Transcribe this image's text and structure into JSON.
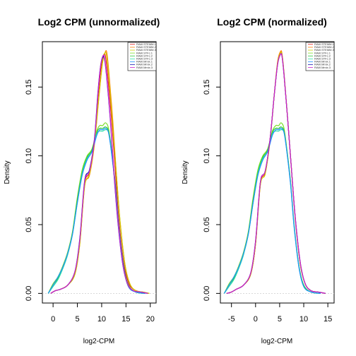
{
  "chart_data": [
    {
      "type": "line",
      "title": "Log2 CPM (unnormalized)",
      "xlabel": "log2-CPM",
      "ylabel": "Density",
      "xlim": [
        -2.2,
        21.2
      ],
      "ylim": [
        -0.007,
        0.183
      ],
      "xticks": [
        0,
        5,
        10,
        15,
        20
      ],
      "yticks": [
        0.0,
        0.05,
        0.1,
        0.15
      ],
      "yticklabels": [
        "0.00",
        "0.05",
        "0.10",
        "0.15"
      ],
      "legend_position": "top-right",
      "baseline": 0,
      "series": [
        {
          "name": "RAW.STEMM.1",
          "color": "#e41a1c",
          "x": [
            -0.5,
            0.5,
            1.5,
            3,
            4.5,
            5.5,
            6.5,
            7.5,
            8.5,
            9.3,
            10,
            10.5,
            10.8,
            11.2,
            12,
            12.8,
            13.5,
            14.5,
            15.5,
            16.5,
            18,
            19.5
          ],
          "y": [
            0.0,
            0.002,
            0.003,
            0.006,
            0.015,
            0.038,
            0.08,
            0.088,
            0.11,
            0.145,
            0.168,
            0.174,
            0.172,
            0.16,
            0.128,
            0.09,
            0.055,
            0.023,
            0.008,
            0.003,
            0.001,
            0.0
          ]
        },
        {
          "name": "RAW.STEMM.2",
          "color": "#ff7f00",
          "x": [
            -0.5,
            0.5,
            1.5,
            3,
            4.5,
            5.5,
            6.5,
            7.5,
            8.5,
            9.5,
            10.2,
            10.8,
            11.1,
            11.5,
            12.3,
            13,
            13.8,
            14.8,
            15.8,
            17,
            18.5,
            19.8
          ],
          "y": [
            0.0,
            0.002,
            0.003,
            0.006,
            0.014,
            0.036,
            0.078,
            0.086,
            0.108,
            0.145,
            0.168,
            0.176,
            0.174,
            0.16,
            0.125,
            0.088,
            0.052,
            0.021,
            0.007,
            0.002,
            0.001,
            0.0
          ]
        },
        {
          "name": "RAW.STEMM.3",
          "color": "#cdcd00",
          "x": [
            -0.5,
            0.5,
            1.5,
            3,
            4.5,
            5.5,
            6.5,
            7.5,
            8.5,
            9.5,
            10.2,
            10.7,
            11,
            11.4,
            12.2,
            13,
            13.8,
            14.8,
            15.8,
            17,
            18.5,
            19.8
          ],
          "y": [
            0.0,
            0.002,
            0.003,
            0.006,
            0.014,
            0.036,
            0.078,
            0.087,
            0.109,
            0.146,
            0.169,
            0.175,
            0.173,
            0.16,
            0.125,
            0.088,
            0.052,
            0.021,
            0.007,
            0.002,
            0.001,
            0.0
          ]
        },
        {
          "name": "RAW.STFc.1",
          "color": "#7cdf2a",
          "x": [
            -1,
            0,
            1,
            2,
            3,
            4,
            5,
            6,
            7,
            8,
            9,
            9.6,
            10.2,
            10.8,
            11.4,
            12,
            12.8,
            13.5,
            14.5,
            15.5,
            17,
            19
          ],
          "y": [
            0.0,
            0.007,
            0.012,
            0.02,
            0.03,
            0.045,
            0.07,
            0.09,
            0.1,
            0.105,
            0.118,
            0.122,
            0.122,
            0.124,
            0.12,
            0.105,
            0.08,
            0.05,
            0.02,
            0.006,
            0.001,
            0.0
          ]
        },
        {
          "name": "RAW.STFc.2",
          "color": "#2ac93a",
          "x": [
            -1,
            0,
            1,
            2,
            3,
            4,
            5,
            6,
            7,
            8,
            9,
            9.6,
            10.2,
            10.8,
            11.4,
            12,
            12.8,
            13.5,
            14.5,
            15.5,
            17,
            19
          ],
          "y": [
            0.0,
            0.006,
            0.011,
            0.019,
            0.029,
            0.044,
            0.068,
            0.088,
            0.099,
            0.104,
            0.117,
            0.12,
            0.12,
            0.121,
            0.118,
            0.104,
            0.079,
            0.049,
            0.02,
            0.006,
            0.001,
            0.0
          ]
        },
        {
          "name": "RAW.STFc.3",
          "color": "#2ee0a8",
          "x": [
            -1,
            0,
            1,
            2,
            3,
            4,
            5,
            6,
            7,
            8,
            9,
            9.6,
            10.2,
            10.8,
            11.4,
            12,
            12.8,
            13.5,
            14.5,
            15.5,
            17,
            19
          ],
          "y": [
            0.0,
            0.005,
            0.01,
            0.018,
            0.028,
            0.043,
            0.066,
            0.087,
            0.098,
            0.103,
            0.116,
            0.118,
            0.118,
            0.119,
            0.117,
            0.103,
            0.078,
            0.048,
            0.019,
            0.005,
            0.001,
            0.0
          ]
        },
        {
          "name": "RAW.Mmix.1",
          "color": "#1e90ff",
          "x": [
            -1,
            0,
            1,
            2,
            3,
            4,
            5,
            6,
            7,
            8,
            9,
            9.6,
            10.2,
            10.8,
            11.4,
            12,
            12.8,
            13.5,
            14.5,
            15.5,
            17,
            19
          ],
          "y": [
            0.0,
            0.006,
            0.012,
            0.019,
            0.029,
            0.043,
            0.066,
            0.086,
            0.097,
            0.103,
            0.115,
            0.119,
            0.119,
            0.12,
            0.117,
            0.103,
            0.078,
            0.049,
            0.019,
            0.005,
            0.001,
            0.0
          ]
        },
        {
          "name": "RAW.Mmix.2",
          "color": "#1a1ab4",
          "x": [
            -0.5,
            0.5,
            1.5,
            3,
            4.5,
            5.5,
            6.5,
            7.5,
            8.5,
            9.2,
            9.8,
            10.3,
            10.6,
            11,
            11.8,
            12.5,
            13.3,
            14.3,
            15.3,
            16.5,
            18,
            19.5
          ],
          "y": [
            0.0,
            0.002,
            0.003,
            0.006,
            0.016,
            0.04,
            0.082,
            0.09,
            0.112,
            0.145,
            0.166,
            0.172,
            0.17,
            0.158,
            0.125,
            0.088,
            0.053,
            0.022,
            0.007,
            0.002,
            0.001,
            0.0
          ]
        },
        {
          "name": "RAW.Mmix.3",
          "color": "#cc22cc",
          "x": [
            -0.5,
            0.5,
            1.5,
            3,
            4.5,
            5.5,
            6.5,
            7.5,
            8.5,
            9.2,
            9.8,
            10.3,
            10.6,
            11,
            11.8,
            12.5,
            13.3,
            14.3,
            15.3,
            16.5,
            18,
            19.5
          ],
          "y": [
            0.0,
            0.002,
            0.003,
            0.006,
            0.016,
            0.039,
            0.081,
            0.089,
            0.111,
            0.144,
            0.166,
            0.173,
            0.171,
            0.159,
            0.126,
            0.089,
            0.054,
            0.022,
            0.007,
            0.002,
            0.001,
            0.0
          ]
        }
      ]
    },
    {
      "type": "line",
      "title": "Log2 CPM (normalized)",
      "xlabel": "log2-CPM",
      "ylabel": "Density",
      "xlim": [
        -7.3,
        16.3
      ],
      "ylim": [
        -0.007,
        0.183
      ],
      "xticks": [
        -5,
        0,
        5,
        10,
        15
      ],
      "yticks": [
        0.0,
        0.05,
        0.1,
        0.15
      ],
      "yticklabels": [
        "0.00",
        "0.05",
        "0.10",
        "0.15"
      ],
      "legend_position": "top-right",
      "baseline": 0,
      "series": [
        {
          "name": "RAW.STEMM.1",
          "color": "#e41a1c",
          "x": [
            -6,
            -5,
            -4,
            -2.5,
            -1,
            0,
            1,
            2,
            3,
            3.9,
            4.6,
            5.2,
            5.5,
            5.9,
            6.7,
            7.5,
            8.3,
            9.3,
            10.3,
            11.5,
            13,
            14.5
          ],
          "y": [
            0.0,
            0.001,
            0.003,
            0.006,
            0.014,
            0.036,
            0.08,
            0.088,
            0.112,
            0.145,
            0.168,
            0.175,
            0.173,
            0.16,
            0.125,
            0.088,
            0.052,
            0.021,
            0.007,
            0.002,
            0.001,
            0.0
          ]
        },
        {
          "name": "RAW.STEMM.2",
          "color": "#ff7f00",
          "x": [
            -6,
            -5,
            -4,
            -2.5,
            -1,
            0,
            1,
            2,
            3,
            3.9,
            4.6,
            5.2,
            5.5,
            5.9,
            6.7,
            7.5,
            8.3,
            9.3,
            10.3,
            11.5,
            13,
            14.5
          ],
          "y": [
            0.0,
            0.001,
            0.003,
            0.006,
            0.014,
            0.036,
            0.079,
            0.087,
            0.111,
            0.145,
            0.169,
            0.176,
            0.174,
            0.16,
            0.125,
            0.088,
            0.052,
            0.021,
            0.007,
            0.002,
            0.001,
            0.0
          ]
        },
        {
          "name": "RAW.STEMM.3",
          "color": "#cdcd00",
          "x": [
            -6,
            -5,
            -4,
            -2.5,
            -1,
            0,
            1,
            2,
            3,
            3.9,
            4.6,
            5.2,
            5.5,
            5.9,
            6.7,
            7.5,
            8.3,
            9.3,
            10.3,
            11.5,
            13,
            14.5
          ],
          "y": [
            0.0,
            0.001,
            0.003,
            0.006,
            0.014,
            0.036,
            0.079,
            0.087,
            0.111,
            0.145,
            0.168,
            0.175,
            0.173,
            0.16,
            0.125,
            0.088,
            0.052,
            0.021,
            0.007,
            0.002,
            0.001,
            0.0
          ]
        },
        {
          "name": "RAW.STFc.1",
          "color": "#7cdf2a",
          "x": [
            -6.5,
            -5.5,
            -4.5,
            -3.5,
            -2.5,
            -1.5,
            -0.5,
            0.5,
            1.5,
            2.5,
            3.5,
            4.2,
            4.8,
            5.3,
            5.9,
            6.5,
            7.3,
            8,
            9,
            10,
            11.5,
            13.5
          ],
          "y": [
            0.0,
            0.007,
            0.012,
            0.02,
            0.03,
            0.045,
            0.07,
            0.09,
            0.1,
            0.105,
            0.118,
            0.122,
            0.122,
            0.124,
            0.12,
            0.105,
            0.08,
            0.05,
            0.02,
            0.006,
            0.001,
            0.0
          ]
        },
        {
          "name": "RAW.STFc.2",
          "color": "#2ac93a",
          "x": [
            -6.5,
            -5.5,
            -4.5,
            -3.5,
            -2.5,
            -1.5,
            -0.5,
            0.5,
            1.5,
            2.5,
            3.5,
            4.2,
            4.8,
            5.3,
            5.9,
            6.5,
            7.3,
            8,
            9,
            10,
            11.5,
            13.5
          ],
          "y": [
            0.0,
            0.006,
            0.011,
            0.019,
            0.029,
            0.044,
            0.068,
            0.088,
            0.099,
            0.104,
            0.117,
            0.12,
            0.12,
            0.121,
            0.118,
            0.104,
            0.079,
            0.049,
            0.02,
            0.006,
            0.001,
            0.0
          ]
        },
        {
          "name": "RAW.STFc.3",
          "color": "#2ee0a8",
          "x": [
            -6.5,
            -5.5,
            -4.5,
            -3.5,
            -2.5,
            -1.5,
            -0.5,
            0.5,
            1.5,
            2.5,
            3.5,
            4.2,
            4.8,
            5.3,
            5.9,
            6.5,
            7.3,
            8,
            9,
            10,
            11.5,
            13.5
          ],
          "y": [
            0.0,
            0.005,
            0.01,
            0.018,
            0.028,
            0.043,
            0.066,
            0.087,
            0.098,
            0.103,
            0.116,
            0.118,
            0.118,
            0.119,
            0.117,
            0.103,
            0.078,
            0.048,
            0.019,
            0.005,
            0.001,
            0.0
          ]
        },
        {
          "name": "RAW.Mmix.1",
          "color": "#1e90ff",
          "x": [
            -6.5,
            -5.5,
            -4.5,
            -3.5,
            -2.5,
            -1.5,
            -0.5,
            0.5,
            1.5,
            2.5,
            3.5,
            4.2,
            4.8,
            5.3,
            5.9,
            6.5,
            7.3,
            8,
            9,
            10,
            11.5,
            13.5
          ],
          "y": [
            0.0,
            0.006,
            0.012,
            0.019,
            0.029,
            0.043,
            0.066,
            0.086,
            0.097,
            0.103,
            0.115,
            0.119,
            0.119,
            0.12,
            0.117,
            0.103,
            0.078,
            0.049,
            0.019,
            0.005,
            0.001,
            0.0
          ]
        },
        {
          "name": "RAW.Mmix.2",
          "color": "#1a1ab4",
          "x": [
            -6,
            -5,
            -4,
            -2.5,
            -1,
            0,
            1,
            2,
            3,
            3.9,
            4.6,
            5.2,
            5.5,
            5.9,
            6.7,
            7.5,
            8.3,
            9.3,
            10.3,
            11.5,
            13,
            14.5
          ],
          "y": [
            0.0,
            0.001,
            0.003,
            0.006,
            0.015,
            0.038,
            0.081,
            0.089,
            0.112,
            0.145,
            0.167,
            0.174,
            0.172,
            0.159,
            0.125,
            0.088,
            0.053,
            0.022,
            0.007,
            0.002,
            0.001,
            0.0
          ]
        },
        {
          "name": "RAW.Mmix.3",
          "color": "#cc22cc",
          "x": [
            -6,
            -5,
            -4,
            -2.5,
            -1,
            0,
            1,
            2,
            3,
            3.9,
            4.6,
            5.2,
            5.5,
            5.9,
            6.7,
            7.5,
            8.3,
            9.3,
            10.3,
            11.5,
            13,
            14.5
          ],
          "y": [
            0.0,
            0.001,
            0.003,
            0.006,
            0.015,
            0.038,
            0.081,
            0.089,
            0.112,
            0.145,
            0.167,
            0.174,
            0.172,
            0.159,
            0.125,
            0.088,
            0.053,
            0.022,
            0.007,
            0.002,
            0.001,
            0.0
          ]
        }
      ]
    }
  ]
}
